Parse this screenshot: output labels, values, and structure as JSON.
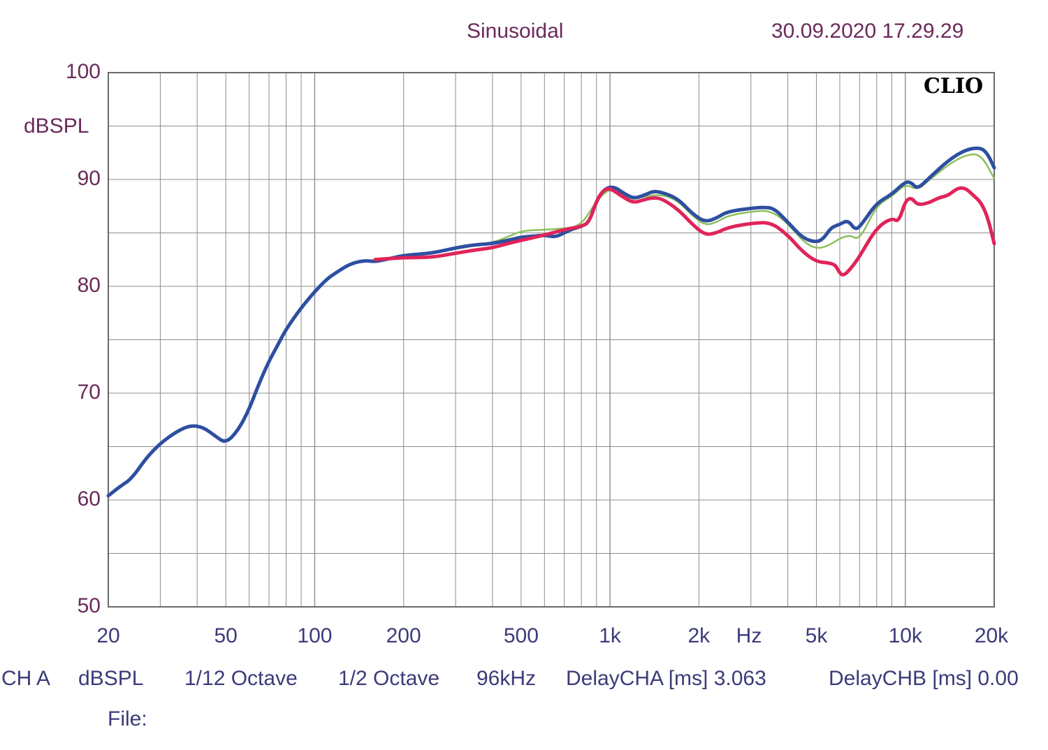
{
  "header": {
    "mode": "Sinusoidal",
    "datetime": "30.09.2020 17.29.29",
    "brand": "CLIO"
  },
  "footer": {
    "channel": "CH A",
    "unit": "dBSPL",
    "resolution": "1/12 Octave",
    "smoothing": "1/2 Octave",
    "rate": "96kHz",
    "delay_a": "DelayCHA [ms] 3.063",
    "delay_b": "DelayCHB [ms] 0.00",
    "file_label": "File:"
  },
  "colors": {
    "grid": "#8c8c8c",
    "frame": "#6a6a6a",
    "blue": "#2e4fa0",
    "red": "#e0245a",
    "green": "#8cbf5a"
  },
  "chart_data": {
    "type": "line",
    "title": "Sinusoidal",
    "xlabel": "Hz",
    "ylabel": "dBSPL",
    "xscale": "log",
    "xlim": [
      20,
      20000
    ],
    "ylim": [
      50,
      100
    ],
    "x_ticks": [
      {
        "value": 20,
        "label": "20"
      },
      {
        "value": 50,
        "label": "50"
      },
      {
        "value": 100,
        "label": "100"
      },
      {
        "value": 200,
        "label": "200"
      },
      {
        "value": 500,
        "label": "500"
      },
      {
        "value": 1000,
        "label": "1k"
      },
      {
        "value": 2000,
        "label": "2k"
      },
      {
        "value": 5000,
        "label": "5k"
      },
      {
        "value": 10000,
        "label": "10k"
      },
      {
        "value": 20000,
        "label": "20k"
      }
    ],
    "y_ticks": [
      {
        "value": 100,
        "label": "100"
      },
      {
        "value": 90,
        "label": "90"
      },
      {
        "value": 80,
        "label": "80"
      },
      {
        "value": 70,
        "label": "70"
      },
      {
        "value": 60,
        "label": "60"
      },
      {
        "value": 50,
        "label": "50"
      }
    ],
    "grid": true,
    "series": [
      {
        "name": "blue",
        "color": "#2e4fa0",
        "points": [
          [
            20,
            60.4
          ],
          [
            22,
            61.3
          ],
          [
            24,
            62
          ],
          [
            27,
            64
          ],
          [
            30,
            65.3
          ],
          [
            34,
            66.4
          ],
          [
            38,
            67
          ],
          [
            42,
            66.8
          ],
          [
            46,
            66
          ],
          [
            50,
            65.3
          ],
          [
            55,
            66.5
          ],
          [
            60,
            68.5
          ],
          [
            65,
            71
          ],
          [
            70,
            73
          ],
          [
            75,
            74.5
          ],
          [
            80,
            76
          ],
          [
            90,
            78
          ],
          [
            100,
            79.5
          ],
          [
            110,
            80.7
          ],
          [
            120,
            81.4
          ],
          [
            130,
            82
          ],
          [
            140,
            82.3
          ],
          [
            150,
            82.4
          ],
          [
            160,
            82.3
          ],
          [
            180,
            82.6
          ],
          [
            200,
            82.9
          ],
          [
            250,
            83.1
          ],
          [
            300,
            83.6
          ],
          [
            350,
            83.9
          ],
          [
            400,
            84
          ],
          [
            450,
            84.3
          ],
          [
            500,
            84.6
          ],
          [
            550,
            84.7
          ],
          [
            600,
            84.8
          ],
          [
            650,
            84.6
          ],
          [
            700,
            85
          ],
          [
            750,
            85.4
          ],
          [
            800,
            85.6
          ],
          [
            850,
            86
          ],
          [
            900,
            88
          ],
          [
            950,
            89
          ],
          [
            1000,
            89.3
          ],
          [
            1050,
            89.2
          ],
          [
            1100,
            88.8
          ],
          [
            1200,
            88.2
          ],
          [
            1300,
            88.5
          ],
          [
            1400,
            88.9
          ],
          [
            1500,
            88.8
          ],
          [
            1700,
            88.2
          ],
          [
            1900,
            86.8
          ],
          [
            2100,
            86
          ],
          [
            2300,
            86.4
          ],
          [
            2500,
            87
          ],
          [
            3000,
            87.3
          ],
          [
            3300,
            87.4
          ],
          [
            3600,
            87.3
          ],
          [
            4000,
            86
          ],
          [
            4500,
            84.5
          ],
          [
            5000,
            84.1
          ],
          [
            5300,
            84.5
          ],
          [
            5600,
            85.5
          ],
          [
            6000,
            85.8
          ],
          [
            6400,
            86.2
          ],
          [
            6800,
            85.2
          ],
          [
            7200,
            86
          ],
          [
            8000,
            87.8
          ],
          [
            9000,
            88.6
          ],
          [
            10000,
            89.8
          ],
          [
            10500,
            89.7
          ],
          [
            11000,
            89.1
          ],
          [
            12000,
            90.1
          ],
          [
            14000,
            91.8
          ],
          [
            16000,
            92.8
          ],
          [
            18000,
            93
          ],
          [
            19000,
            92.4
          ],
          [
            20000,
            91.1
          ]
        ]
      },
      {
        "name": "green",
        "color": "#8cbf5a",
        "points": [
          [
            160,
            82.4
          ],
          [
            200,
            82.8
          ],
          [
            300,
            83.5
          ],
          [
            400,
            84.1
          ],
          [
            450,
            84.6
          ],
          [
            500,
            85.2
          ],
          [
            600,
            85.3
          ],
          [
            700,
            85.4
          ],
          [
            800,
            85.7
          ],
          [
            900,
            88
          ],
          [
            1000,
            89.2
          ],
          [
            1100,
            88.6
          ],
          [
            1200,
            88.1
          ],
          [
            1300,
            88.4
          ],
          [
            1500,
            88.6
          ],
          [
            1700,
            88
          ],
          [
            1900,
            86.6
          ],
          [
            2100,
            85.7
          ],
          [
            2300,
            86
          ],
          [
            2500,
            86.6
          ],
          [
            3000,
            87
          ],
          [
            3500,
            87.1
          ],
          [
            4000,
            85.9
          ],
          [
            4500,
            84.2
          ],
          [
            5000,
            83.5
          ],
          [
            5500,
            83.8
          ],
          [
            6000,
            84.5
          ],
          [
            6500,
            84.8
          ],
          [
            7000,
            84.3
          ],
          [
            8000,
            87.6
          ],
          [
            9000,
            88.4
          ],
          [
            10000,
            89.6
          ],
          [
            11000,
            89
          ],
          [
            12000,
            89.9
          ],
          [
            14000,
            91.4
          ],
          [
            16000,
            92.3
          ],
          [
            18000,
            92.4
          ],
          [
            20000,
            90.1
          ]
        ]
      },
      {
        "name": "red",
        "color": "#e0245a",
        "points": [
          [
            160,
            82.5
          ],
          [
            200,
            82.7
          ],
          [
            250,
            82.7
          ],
          [
            300,
            83.1
          ],
          [
            350,
            83.4
          ],
          [
            400,
            83.6
          ],
          [
            450,
            84
          ],
          [
            500,
            84.3
          ],
          [
            600,
            84.8
          ],
          [
            700,
            85.3
          ],
          [
            800,
            85.6
          ],
          [
            850,
            86
          ],
          [
            900,
            88
          ],
          [
            950,
            89
          ],
          [
            1000,
            89.2
          ],
          [
            1100,
            88.4
          ],
          [
            1200,
            87.8
          ],
          [
            1300,
            88.1
          ],
          [
            1400,
            88.3
          ],
          [
            1500,
            88.2
          ],
          [
            1700,
            87.2
          ],
          [
            1900,
            85.8
          ],
          [
            2100,
            84.8
          ],
          [
            2300,
            85
          ],
          [
            2500,
            85.5
          ],
          [
            3000,
            85.9
          ],
          [
            3500,
            86
          ],
          [
            4000,
            84.8
          ],
          [
            4500,
            83.2
          ],
          [
            5000,
            82.3
          ],
          [
            5500,
            82.2
          ],
          [
            5800,
            82
          ],
          [
            6000,
            81.2
          ],
          [
            6200,
            81
          ],
          [
            6600,
            81.8
          ],
          [
            7000,
            82.8
          ],
          [
            8000,
            85.5
          ],
          [
            9000,
            86.4
          ],
          [
            9500,
            86
          ],
          [
            10000,
            88
          ],
          [
            10500,
            88.3
          ],
          [
            11000,
            87.6
          ],
          [
            12000,
            87.8
          ],
          [
            13000,
            88.3
          ],
          [
            14000,
            88.5
          ],
          [
            15000,
            89.2
          ],
          [
            16000,
            89.2
          ],
          [
            17000,
            88.5
          ],
          [
            18000,
            87.9
          ],
          [
            19000,
            86.5
          ],
          [
            20000,
            84
          ]
        ]
      }
    ]
  }
}
